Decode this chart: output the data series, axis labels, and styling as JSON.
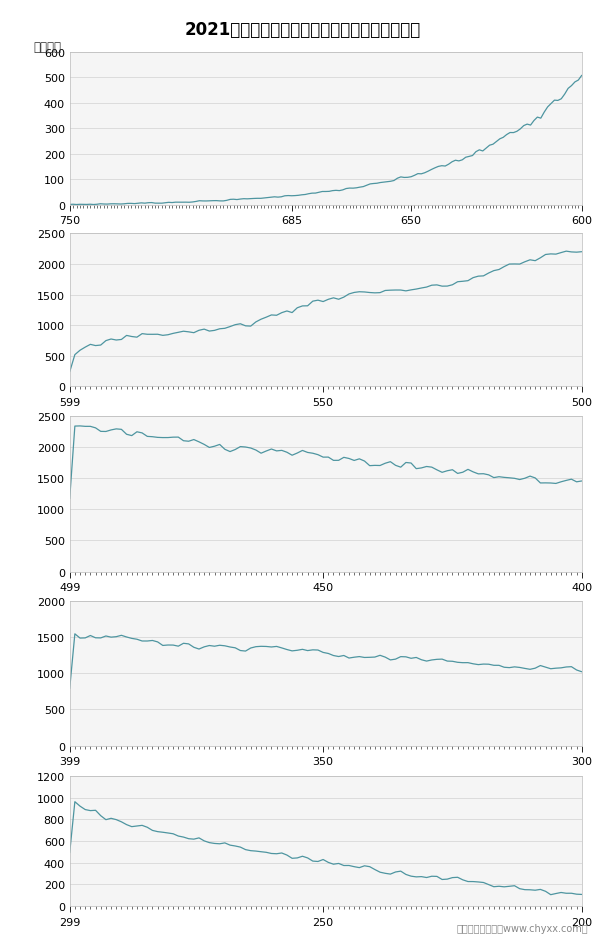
{
  "title": "2021年山东省夏季高考考生各分数段明细统计图",
  "unit_label": "单位：人",
  "line_color": "#4e95a0",
  "background_color": "#ffffff",
  "panel_bg": "#f5f5f5",
  "grid_color": "#d8d8d8",
  "panels": [
    {
      "x_start": 750,
      "x_end": 600,
      "x_ticks": [
        750,
        685,
        650,
        600
      ],
      "ylim": [
        0,
        600
      ],
      "yticks": [
        0,
        100,
        200,
        300,
        400,
        500,
        600
      ]
    },
    {
      "x_start": 599,
      "x_end": 500,
      "x_ticks": [
        599,
        550,
        500
      ],
      "ylim": [
        0,
        2500
      ],
      "yticks": [
        0,
        500,
        1000,
        1500,
        2000,
        2500
      ]
    },
    {
      "x_start": 499,
      "x_end": 400,
      "x_ticks": [
        499,
        450,
        400
      ],
      "ylim": [
        0,
        2500
      ],
      "yticks": [
        0,
        500,
        1000,
        1500,
        2000,
        2500
      ]
    },
    {
      "x_start": 399,
      "x_end": 300,
      "x_ticks": [
        399,
        350,
        300
      ],
      "ylim": [
        0,
        2000
      ],
      "yticks": [
        0,
        500,
        1000,
        1500,
        2000
      ]
    },
    {
      "x_start": 299,
      "x_end": 200,
      "x_ticks": [
        299,
        250,
        200
      ],
      "ylim": [
        0,
        1200
      ],
      "yticks": [
        0,
        200,
        400,
        600,
        800,
        1000,
        1200
      ]
    }
  ],
  "footer": "制图：智研咨询（www.chyxx.com）"
}
